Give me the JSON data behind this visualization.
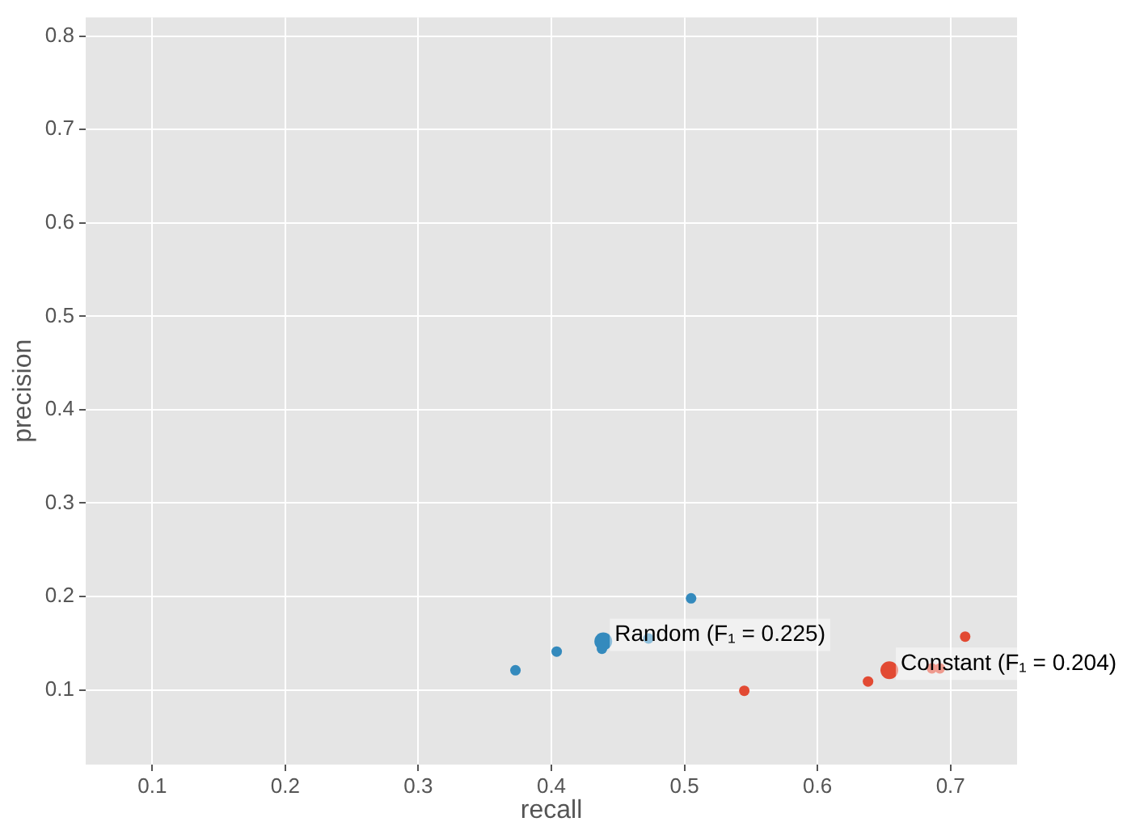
{
  "chart_data": {
    "type": "bubble",
    "xlabel": "recall",
    "ylabel": "precision",
    "xlim": [
      0.05,
      0.75
    ],
    "ylim": [
      0.02,
      0.82
    ],
    "xticks": [
      0.1,
      0.2,
      0.3,
      0.4,
      0.5,
      0.6,
      0.7
    ],
    "yticks": [
      0.1,
      0.2,
      0.3,
      0.4,
      0.5,
      0.6,
      0.7,
      0.8
    ],
    "grid": true,
    "marker": "circle",
    "series": [
      {
        "color": "#348abd",
        "x": [
          0.373,
          0.404,
          0.438,
          0.473,
          0.505,
          0.439
        ],
        "values": [
          0.121,
          0.141,
          0.144,
          0.155,
          0.198,
          0.152
        ],
        "sizes": [
          0.35,
          0.35,
          0.35,
          0.35,
          0.35,
          1
        ]
      },
      {
        "color": "#e24a33",
        "x": [
          0.545,
          0.638,
          0.686,
          0.692,
          0.711,
          0.654
        ],
        "values": [
          0.099,
          0.109,
          0.123,
          0.123,
          0.157,
          0.121
        ],
        "sizes": [
          0.35,
          0.35,
          0.35,
          0.35,
          0.35,
          1
        ]
      }
    ],
    "annotations": [
      {
        "text": "Random (F₁ = 0.225)",
        "x": 0.439,
        "y": 0.152
      },
      {
        "text": "Constant (F₁ = 0.204)",
        "x": 0.654,
        "y": 0.121
      }
    ]
  }
}
